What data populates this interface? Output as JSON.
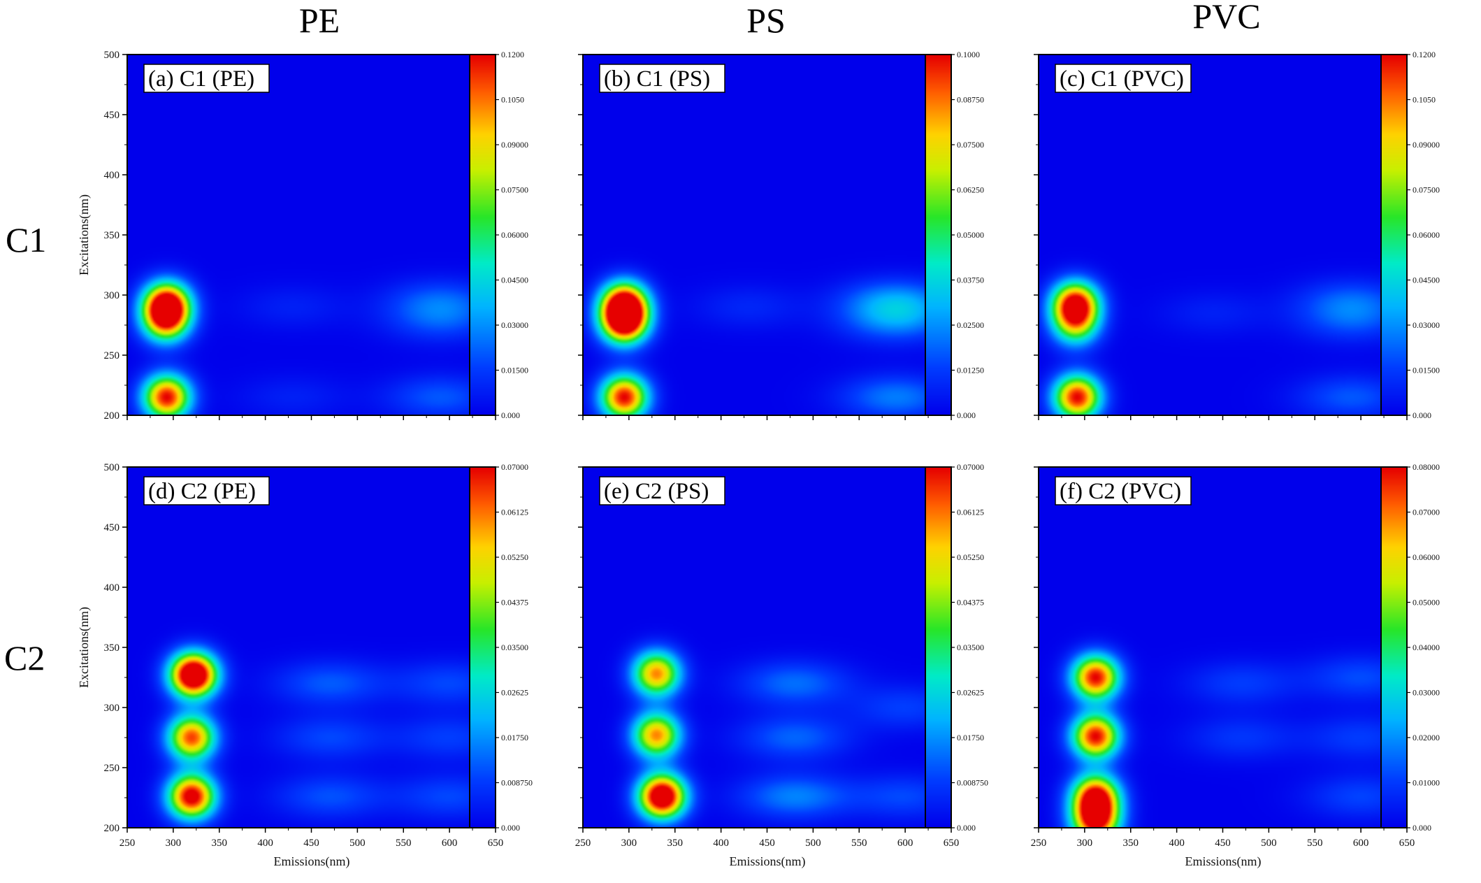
{
  "figure": {
    "column_titles": [
      "PE",
      "PS",
      "PVC"
    ],
    "row_titles": [
      "C1",
      "C2"
    ],
    "x_axis_label": "Emissions(nm)",
    "y_axis_label": "Excitations(nm)"
  },
  "chart_data": [
    {
      "type": "heatmap",
      "label": "(a) C1 (PE)",
      "row": 0,
      "col": 0,
      "xlim": [
        250,
        650
      ],
      "ylim": [
        200,
        500
      ],
      "x_ticks": [
        250,
        300,
        350,
        400,
        450,
        500,
        550,
        600,
        650
      ],
      "y_ticks": [
        200,
        250,
        300,
        350,
        400,
        450,
        500
      ],
      "y_tick_labels": [
        "200",
        "250",
        "300",
        "350",
        "400",
        "450",
        "500"
      ],
      "colorbar": {
        "min": 0,
        "max": 0.12,
        "ticks": [
          "0.000",
          "0.01500",
          "0.03000",
          "0.04500",
          "0.06000",
          "0.07500",
          "0.09000",
          "0.1050",
          "0.1200"
        ]
      },
      "peaks": [
        {
          "em": 293,
          "ex": 293,
          "intensity": 0.12
        },
        {
          "em": 292,
          "ex": 278,
          "intensity": 0.085
        },
        {
          "em": 293,
          "ex": 215,
          "intensity": 0.12
        },
        {
          "em": 590,
          "ex": 295,
          "intensity": 0.02
        },
        {
          "em": 590,
          "ex": 278,
          "intensity": 0.016
        },
        {
          "em": 590,
          "ex": 215,
          "intensity": 0.02
        },
        {
          "em": 430,
          "ex": 290,
          "intensity": 0.008
        },
        {
          "em": 430,
          "ex": 215,
          "intensity": 0.008
        }
      ]
    },
    {
      "type": "heatmap",
      "label": "(b) C1 (PS)",
      "row": 0,
      "col": 1,
      "xlim": [
        250,
        650
      ],
      "ylim": [
        200,
        500
      ],
      "x_ticks": [
        250,
        300,
        350,
        400,
        450,
        500,
        550,
        600,
        650
      ],
      "y_ticks": [
        200,
        250,
        300,
        350,
        400,
        450,
        500
      ],
      "y_tick_labels": [
        "",
        "",
        "",
        "",
        "",
        "",
        ""
      ],
      "colorbar": {
        "min": 0,
        "max": 0.1,
        "ticks": [
          "0.000",
          "0.01250",
          "0.02500",
          "0.03750",
          "0.05000",
          "0.06250",
          "0.07500",
          "0.08750",
          "0.1000"
        ]
      },
      "peaks": [
        {
          "em": 295,
          "ex": 293,
          "intensity": 0.1
        },
        {
          "em": 295,
          "ex": 277,
          "intensity": 0.1
        },
        {
          "em": 295,
          "ex": 215,
          "intensity": 0.1
        },
        {
          "em": 590,
          "ex": 295,
          "intensity": 0.025
        },
        {
          "em": 590,
          "ex": 278,
          "intensity": 0.02
        },
        {
          "em": 590,
          "ex": 215,
          "intensity": 0.022
        },
        {
          "em": 430,
          "ex": 290,
          "intensity": 0.008
        }
      ]
    },
    {
      "type": "heatmap",
      "label": "(c) C1 (PVC)",
      "row": 0,
      "col": 2,
      "xlim": [
        250,
        650
      ],
      "ylim": [
        200,
        500
      ],
      "x_ticks": [
        250,
        300,
        350,
        400,
        450,
        500,
        550,
        600,
        650
      ],
      "y_ticks": [
        200,
        250,
        300,
        350,
        400,
        450,
        500
      ],
      "y_tick_labels": [
        "",
        "",
        "",
        "",
        "",
        "",
        ""
      ],
      "colorbar": {
        "min": 0,
        "max": 0.12,
        "ticks": [
          "0.000",
          "0.01500",
          "0.03000",
          "0.04500",
          "0.06000",
          "0.07500",
          "0.09000",
          "0.1050",
          "0.1200"
        ]
      },
      "peaks": [
        {
          "em": 290,
          "ex": 293,
          "intensity": 0.12
        },
        {
          "em": 290,
          "ex": 275,
          "intensity": 0.065
        },
        {
          "em": 292,
          "ex": 215,
          "intensity": 0.12
        },
        {
          "em": 590,
          "ex": 295,
          "intensity": 0.02
        },
        {
          "em": 590,
          "ex": 278,
          "intensity": 0.016
        },
        {
          "em": 590,
          "ex": 215,
          "intensity": 0.02
        },
        {
          "em": 440,
          "ex": 285,
          "intensity": 0.008
        }
      ]
    },
    {
      "type": "heatmap",
      "label": "(d) C2 (PE)",
      "row": 1,
      "col": 0,
      "xlim": [
        250,
        650
      ],
      "ylim": [
        200,
        500
      ],
      "x_ticks": [
        250,
        300,
        350,
        400,
        450,
        500,
        550,
        600,
        650
      ],
      "y_ticks": [
        200,
        250,
        300,
        350,
        400,
        450,
        500
      ],
      "y_tick_labels": [
        "200",
        "250",
        "300",
        "350",
        "400",
        "450",
        "500"
      ],
      "colorbar": {
        "min": 0,
        "max": 0.07,
        "ticks": [
          "0.000",
          "0.008750",
          "0.01750",
          "0.02625",
          "0.03500",
          "0.04375",
          "0.05250",
          "0.06125",
          "0.07000"
        ]
      },
      "peaks": [
        {
          "em": 322,
          "ex": 327,
          "intensity": 0.09
        },
        {
          "em": 320,
          "ex": 275,
          "intensity": 0.065
        },
        {
          "em": 320,
          "ex": 226,
          "intensity": 0.075
        },
        {
          "em": 470,
          "ex": 320,
          "intensity": 0.012
        },
        {
          "em": 470,
          "ex": 275,
          "intensity": 0.01
        },
        {
          "em": 470,
          "ex": 226,
          "intensity": 0.011
        },
        {
          "em": 600,
          "ex": 320,
          "intensity": 0.01
        },
        {
          "em": 600,
          "ex": 275,
          "intensity": 0.009
        },
        {
          "em": 600,
          "ex": 226,
          "intensity": 0.01
        }
      ]
    },
    {
      "type": "heatmap",
      "label": "(e) C2 (PS)",
      "row": 1,
      "col": 1,
      "xlim": [
        250,
        650
      ],
      "ylim": [
        200,
        500
      ],
      "x_ticks": [
        250,
        300,
        350,
        400,
        450,
        500,
        550,
        600,
        650
      ],
      "y_ticks": [
        200,
        250,
        300,
        350,
        400,
        450,
        500
      ],
      "y_tick_labels": [
        "",
        "",
        "",
        "",
        "",
        "",
        ""
      ],
      "colorbar": {
        "min": 0,
        "max": 0.07,
        "ticks": [
          "0.000",
          "0.008750",
          "0.01750",
          "0.02625",
          "0.03500",
          "0.04375",
          "0.05250",
          "0.06125",
          "0.07000"
        ]
      },
      "peaks": [
        {
          "em": 330,
          "ex": 328,
          "intensity": 0.06
        },
        {
          "em": 330,
          "ex": 277,
          "intensity": 0.06
        },
        {
          "em": 336,
          "ex": 226,
          "intensity": 0.085
        },
        {
          "em": 480,
          "ex": 320,
          "intensity": 0.014
        },
        {
          "em": 480,
          "ex": 275,
          "intensity": 0.013
        },
        {
          "em": 480,
          "ex": 226,
          "intensity": 0.016
        },
        {
          "em": 600,
          "ex": 300,
          "intensity": 0.009
        },
        {
          "em": 600,
          "ex": 226,
          "intensity": 0.01
        }
      ]
    },
    {
      "type": "heatmap",
      "label": "(f) C2 (PVC)",
      "row": 1,
      "col": 2,
      "xlim": [
        250,
        650
      ],
      "ylim": [
        200,
        500
      ],
      "x_ticks": [
        250,
        300,
        350,
        400,
        450,
        500,
        550,
        600,
        650
      ],
      "y_ticks": [
        200,
        250,
        300,
        350,
        400,
        450,
        500
      ],
      "y_tick_labels": [
        "",
        "",
        "",
        "",
        "",
        "",
        ""
      ],
      "colorbar": {
        "min": 0,
        "max": 0.08,
        "ticks": [
          "0.000",
          "0.01000",
          "0.02000",
          "0.03000",
          "0.04000",
          "0.05000",
          "0.06000",
          "0.07000",
          "0.08000"
        ]
      },
      "peaks": [
        {
          "em": 312,
          "ex": 325,
          "intensity": 0.08
        },
        {
          "em": 312,
          "ex": 276,
          "intensity": 0.08
        },
        {
          "em": 312,
          "ex": 226,
          "intensity": 0.08
        },
        {
          "em": 312,
          "ex": 205,
          "intensity": 0.075
        },
        {
          "em": 470,
          "ex": 320,
          "intensity": 0.01
        },
        {
          "em": 470,
          "ex": 275,
          "intensity": 0.009
        },
        {
          "em": 600,
          "ex": 325,
          "intensity": 0.012
        },
        {
          "em": 600,
          "ex": 275,
          "intensity": 0.01
        },
        {
          "em": 600,
          "ex": 226,
          "intensity": 0.011
        }
      ]
    }
  ]
}
